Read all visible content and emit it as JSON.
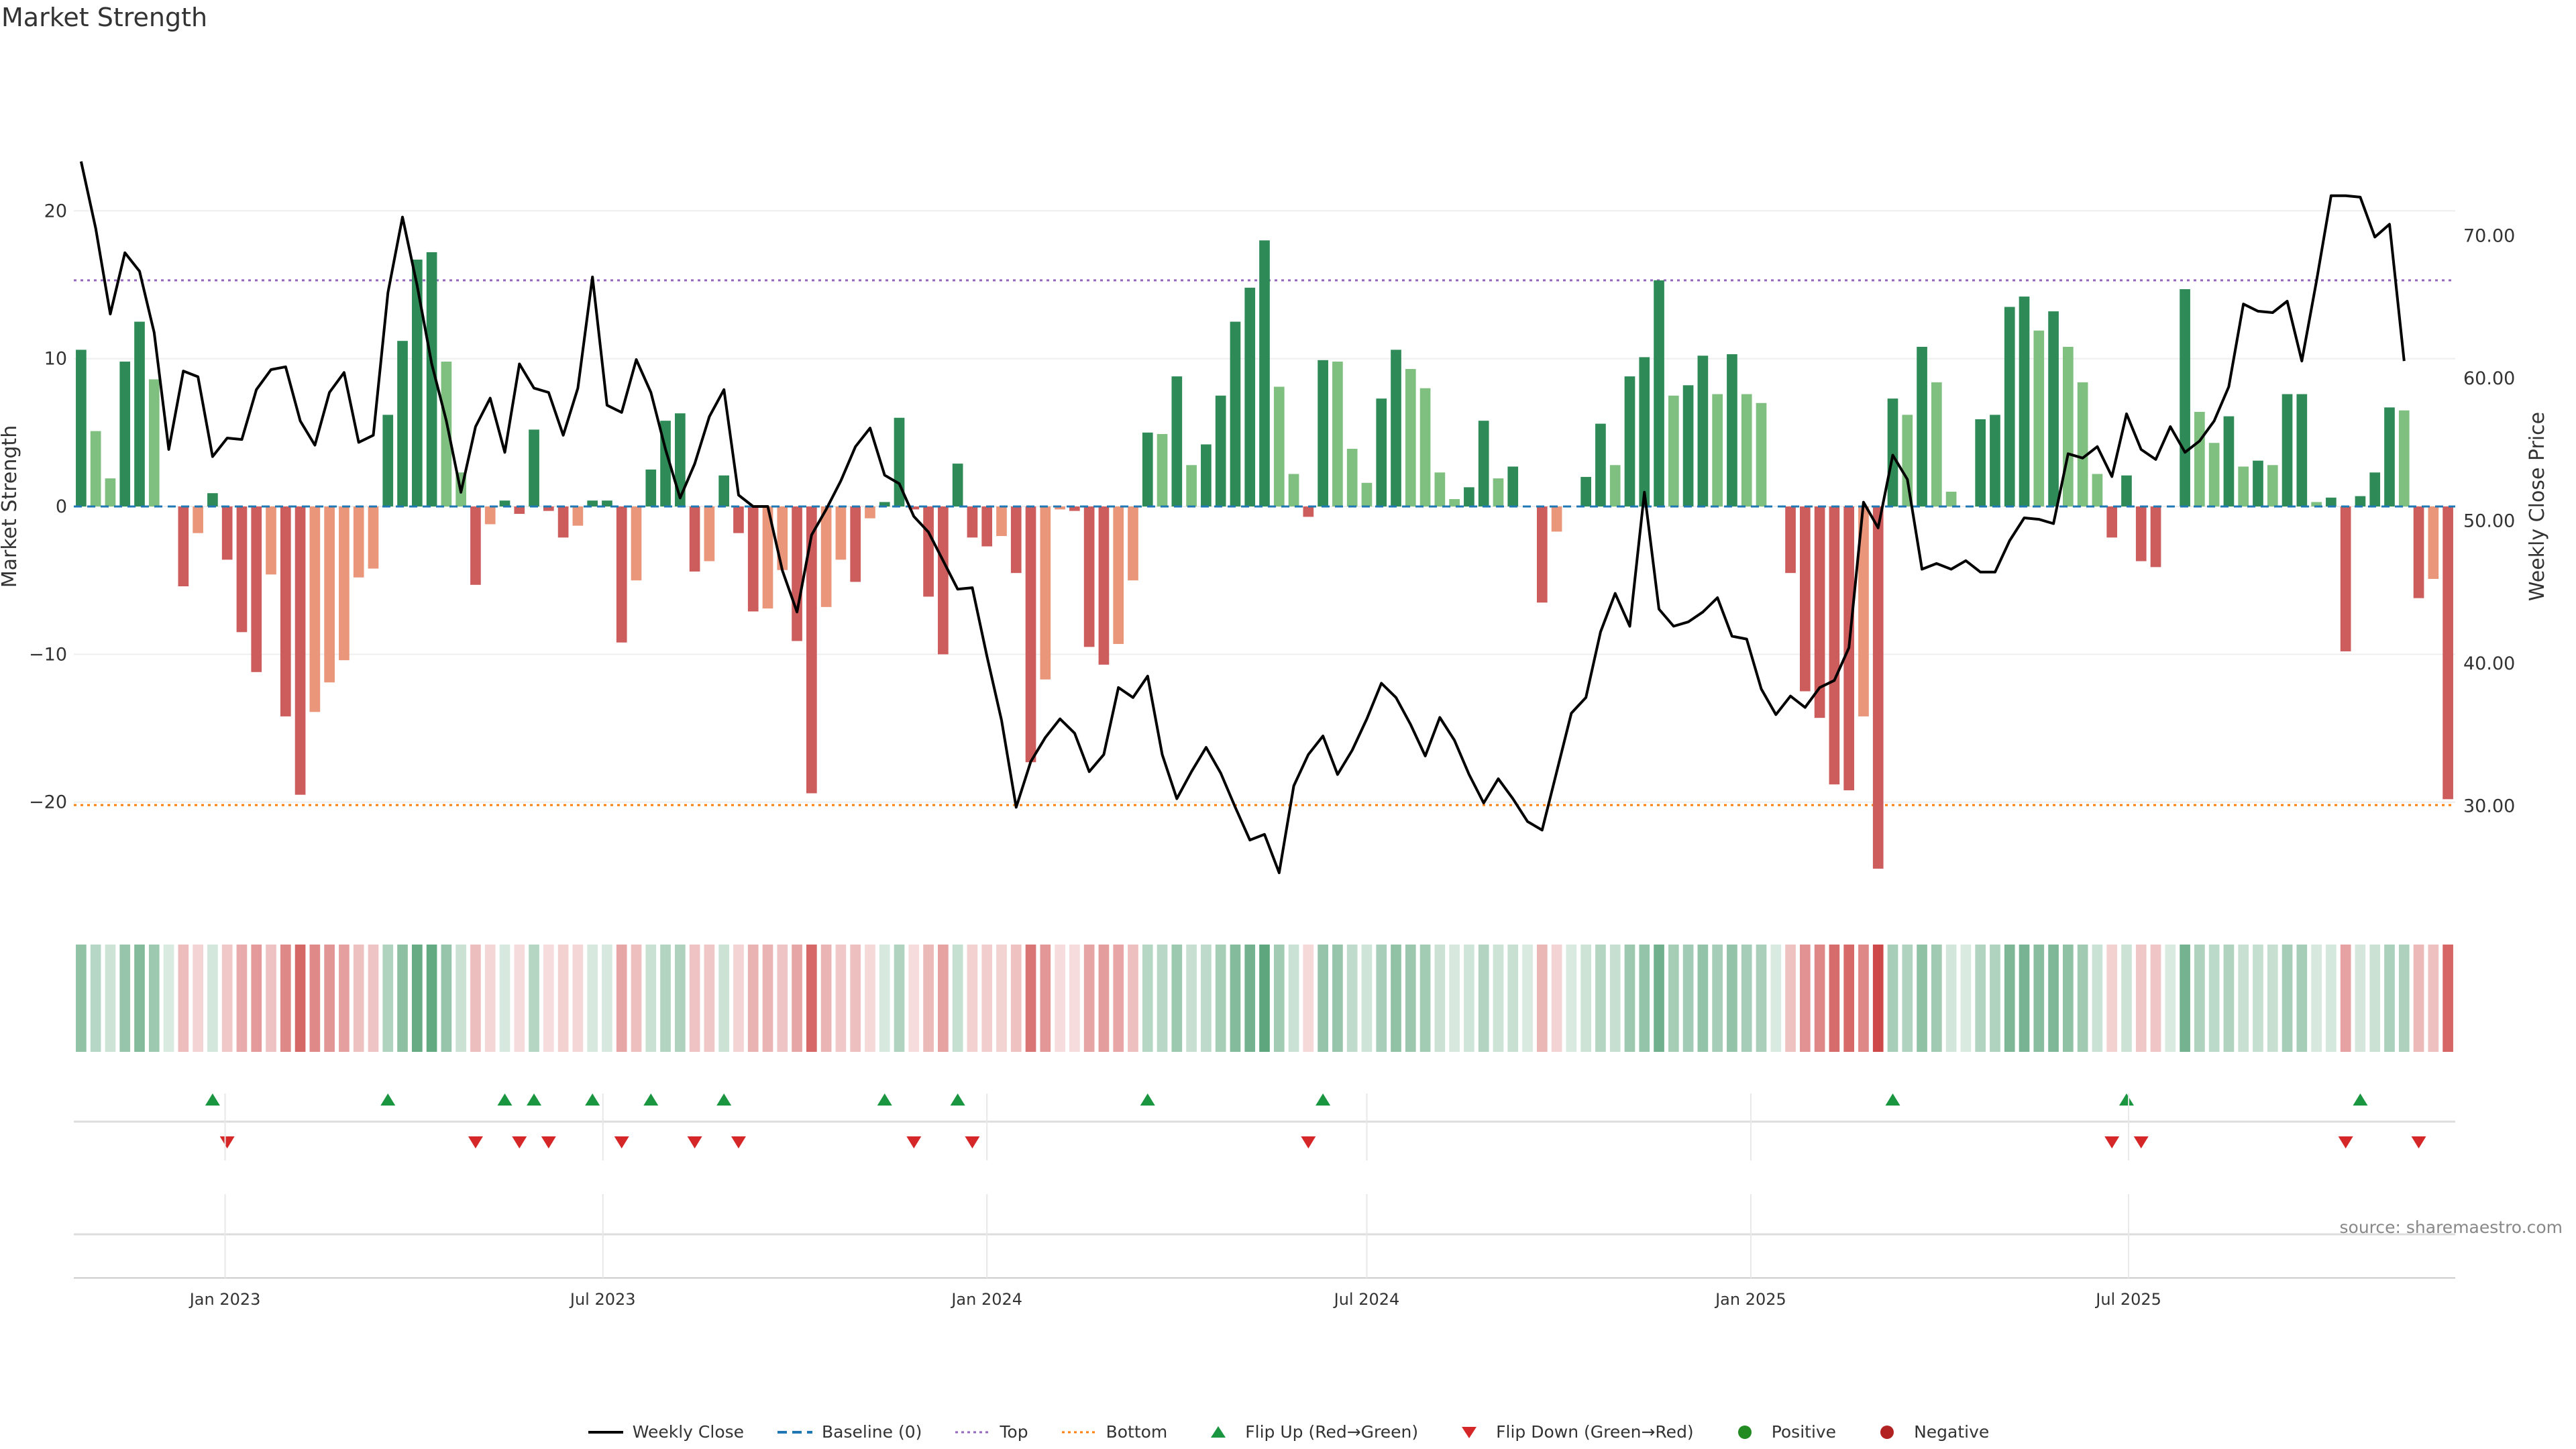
{
  "title": "Market Strength",
  "source_note": "source: sharemaestro.com",
  "colors": {
    "bar_pos_strong": "#2e8b57",
    "bar_pos_weak": "#7fbf7f",
    "bar_neg_strong": "#cd5c5c",
    "bar_neg_weak": "#e9967a",
    "close_line": "#000000",
    "baseline": "#1f77b4",
    "top": "#9467bd",
    "bottom": "#ff7f0e",
    "flip_up": "#1a9641",
    "flip_down": "#d62728",
    "positive": "#228b22",
    "negative": "#b22222"
  },
  "legend": [
    {
      "label": "Weekly Close",
      "marker": "line"
    },
    {
      "label": "Baseline (0)",
      "marker": "dash"
    },
    {
      "label": "Top",
      "marker": "dotted"
    },
    {
      "label": "Bottom",
      "marker": "dotted-orange"
    },
    {
      "label": "Flip Up (Red→Green)",
      "marker": "triangle-up"
    },
    {
      "label": "Flip Down (Green→Red)",
      "marker": "triangle-down"
    },
    {
      "label": "Positive",
      "marker": "dot-green"
    },
    {
      "label": "Negative",
      "marker": "dot-red"
    }
  ],
  "chart_data": {
    "type": "bar",
    "x_start": "2022-10-24",
    "ylabel": "Market Strength",
    "y2label": "Weekly Close Price",
    "ylim": [
      -27,
      27
    ],
    "y_ticks": [
      -20,
      -10,
      0,
      10,
      20
    ],
    "y2lim": [
      23,
      79
    ],
    "y2_ticks": [
      "30.00",
      "40.00",
      "50.00",
      "60.00",
      "70.00"
    ],
    "x_tick_labels": [
      "Jan 2023",
      "Jul 2023",
      "Jan 2024",
      "Jul 2024",
      "Jan 2025",
      "Jul 2025"
    ],
    "top_level": 15.3,
    "bottom_level": -20.2,
    "strength": [
      10.6,
      5.1,
      1.9,
      9.8,
      12.5,
      8.6,
      0,
      -5.4,
      -1.8,
      0.9,
      -3.6,
      -8.5,
      -11.2,
      -4.6,
      -14.2,
      -19.5,
      -13.9,
      -11.9,
      -10.4,
      -4.8,
      -4.2,
      6.2,
      11.2,
      16.7,
      17.2,
      9.8,
      2.3,
      -5.3,
      -1.2,
      0.4,
      -0.5,
      5.2,
      -0.3,
      -2.1,
      -1.3,
      0.4,
      0.4,
      -9.2,
      -5.0,
      2.5,
      5.8,
      6.3,
      -4.4,
      -3.7,
      2.1,
      -1.8,
      -7.1,
      -6.9,
      -4.3,
      -9.1,
      -19.4,
      -6.8,
      -3.6,
      -5.1,
      -0.8,
      0.3,
      6.0,
      -0.2,
      -6.1,
      -10.0,
      2.9,
      -2.1,
      -2.7,
      -2.0,
      -4.5,
      -17.3,
      -11.7,
      -0.2,
      -0.3,
      -9.5,
      -10.7,
      -9.3,
      -5.0,
      5.0,
      4.9,
      8.8,
      2.8,
      4.2,
      7.5,
      12.5,
      14.8,
      18.0,
      8.1,
      2.2,
      -0.7,
      9.9,
      9.8,
      3.9,
      1.6,
      7.3,
      10.6,
      9.3,
      8.0,
      2.3,
      0.5,
      1.3,
      5.8,
      1.9,
      2.7,
      0,
      -6.5,
      -1.7,
      0,
      2.0,
      5.6,
      2.8,
      8.8,
      10.1,
      15.3,
      7.5,
      8.2,
      10.2,
      7.6,
      10.3,
      7.6,
      7.0,
      0,
      -4.5,
      -12.5,
      -14.3,
      -18.8,
      -19.2,
      -14.2,
      -24.5,
      7.3,
      6.2,
      10.8,
      8.4,
      1.0,
      0,
      5.9,
      6.2,
      13.5,
      14.2,
      11.9,
      13.2,
      10.8,
      8.4,
      2.2,
      -2.1,
      2.1,
      -3.7,
      -4.1,
      0,
      14.7,
      6.4,
      4.3,
      6.1,
      2.7,
      3.1,
      2.8,
      7.6,
      7.6,
      0.3,
      0.6,
      -9.8,
      0.7,
      2.3,
      6.7,
      6.5,
      -6.2,
      -4.9,
      -19.8
    ],
    "close": [
      75.2,
      70.5,
      64.5,
      68.8,
      67.5,
      63.2,
      55.0,
      60.5,
      60.1,
      54.5,
      55.8,
      55.7,
      59.2,
      60.6,
      60.8,
      57.0,
      55.3,
      59.0,
      60.4,
      55.5,
      56.0,
      66.0,
      71.3,
      66.5,
      61.0,
      57.0,
      52.0,
      56.6,
      58.6,
      54.8,
      61.0,
      59.3,
      59.0,
      56.0,
      59.3,
      67.1,
      58.1,
      57.6,
      61.3,
      59.0,
      55.0,
      51.6,
      54.0,
      57.3,
      59.2,
      51.8,
      51.0,
      51.0,
      46.5,
      43.6,
      49.0,
      50.8,
      52.8,
      55.2,
      56.5,
      53.2,
      52.6,
      50.3,
      49.2,
      47.2,
      45.2,
      45.3,
      40.5,
      36.0,
      29.9,
      33.1,
      34.8,
      36.1,
      35.1,
      32.4,
      33.6,
      38.3,
      37.6,
      39.1,
      33.6,
      30.5,
      32.4,
      34.1,
      32.3,
      29.9,
      27.6,
      28.0,
      25.3,
      31.4,
      33.6,
      34.9,
      32.2,
      33.9,
      36.1,
      38.6,
      37.6,
      35.7,
      33.5,
      36.2,
      34.6,
      32.2,
      30.2,
      31.9,
      30.5,
      28.9,
      28.3,
      32.4,
      36.5,
      37.6,
      42.2,
      44.9,
      42.6,
      52.0,
      43.8,
      42.6,
      42.9,
      43.6,
      44.6,
      41.9,
      41.7,
      38.2,
      36.4,
      37.7,
      36.9,
      38.3,
      38.8,
      41.1,
      51.3,
      49.5,
      54.6,
      52.9,
      46.6,
      47.0,
      46.6,
      47.2,
      46.4,
      46.4,
      48.6,
      50.2,
      50.1,
      49.8,
      54.7,
      54.4,
      55.2,
      53.1,
      57.5,
      55.0,
      54.3,
      56.6,
      54.8,
      55.6,
      57.0,
      59.4,
      65.2,
      64.7,
      64.6,
      65.4,
      61.2,
      66.8,
      72.8,
      72.8,
      72.7,
      69.9,
      70.8,
      61.2
    ]
  }
}
